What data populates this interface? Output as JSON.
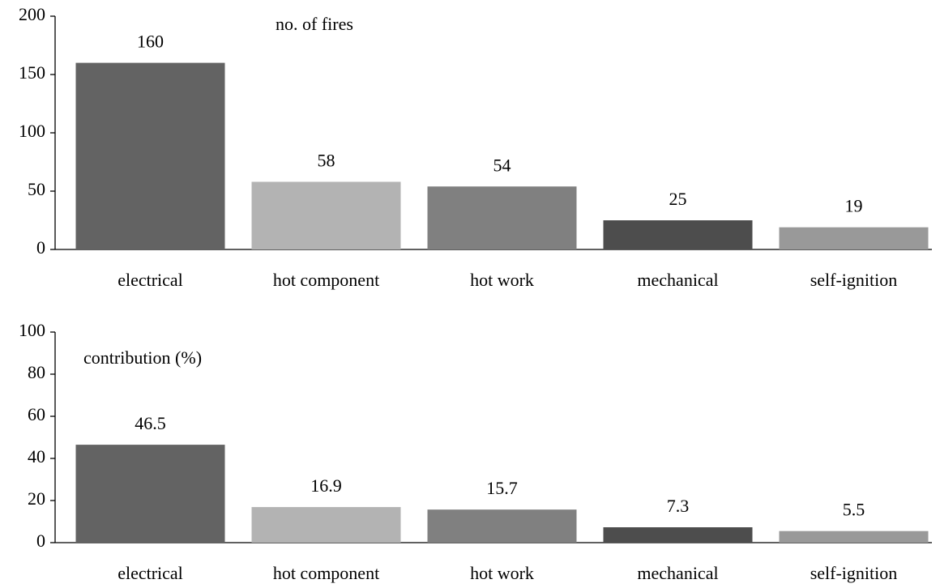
{
  "chart_data": [
    {
      "type": "bar",
      "annotation": "no. of fires",
      "categories": [
        "electrical",
        "hot component",
        "hot work",
        "mechanical",
        "self-ignition"
      ],
      "values": [
        160,
        58,
        54,
        25,
        19
      ],
      "colors": [
        "#636363",
        "#b3b3b3",
        "#808080",
        "#4d4d4d",
        "#999999"
      ],
      "ylim": [
        0,
        200
      ],
      "yticks": [
        0,
        50,
        100,
        150,
        200
      ]
    },
    {
      "type": "bar",
      "annotation": "contribution (%)",
      "categories": [
        "electrical",
        "hot component",
        "hot work",
        "mechanical",
        "self-ignition"
      ],
      "values": [
        46.5,
        16.9,
        15.7,
        7.3,
        5.5
      ],
      "colors": [
        "#636363",
        "#b3b3b3",
        "#808080",
        "#4d4d4d",
        "#999999"
      ],
      "ylim": [
        0,
        100
      ],
      "yticks": [
        0,
        20,
        40,
        60,
        80,
        100
      ]
    }
  ]
}
